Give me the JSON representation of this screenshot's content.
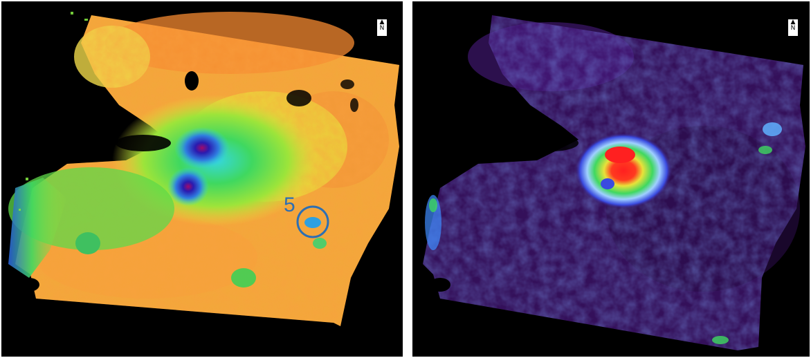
{
  "left_panel": {
    "north_arrow": {
      "letter": "N",
      "icon": "north-arrow-icon"
    },
    "annotation": {
      "label": "5",
      "marker": "circle",
      "color": "#2d6fb3"
    },
    "colors": {
      "background": "#000000",
      "dominant": "#f7b23a",
      "low": "#2ad34a",
      "lowest": "#2a1bb0"
    }
  },
  "right_panel": {
    "north_arrow": {
      "letter": "N",
      "icon": "north-arrow-icon"
    },
    "colors": {
      "background": "#000000",
      "dominant": "#3a1060",
      "high": "#ff2020",
      "mid": "#2ad34a"
    }
  }
}
